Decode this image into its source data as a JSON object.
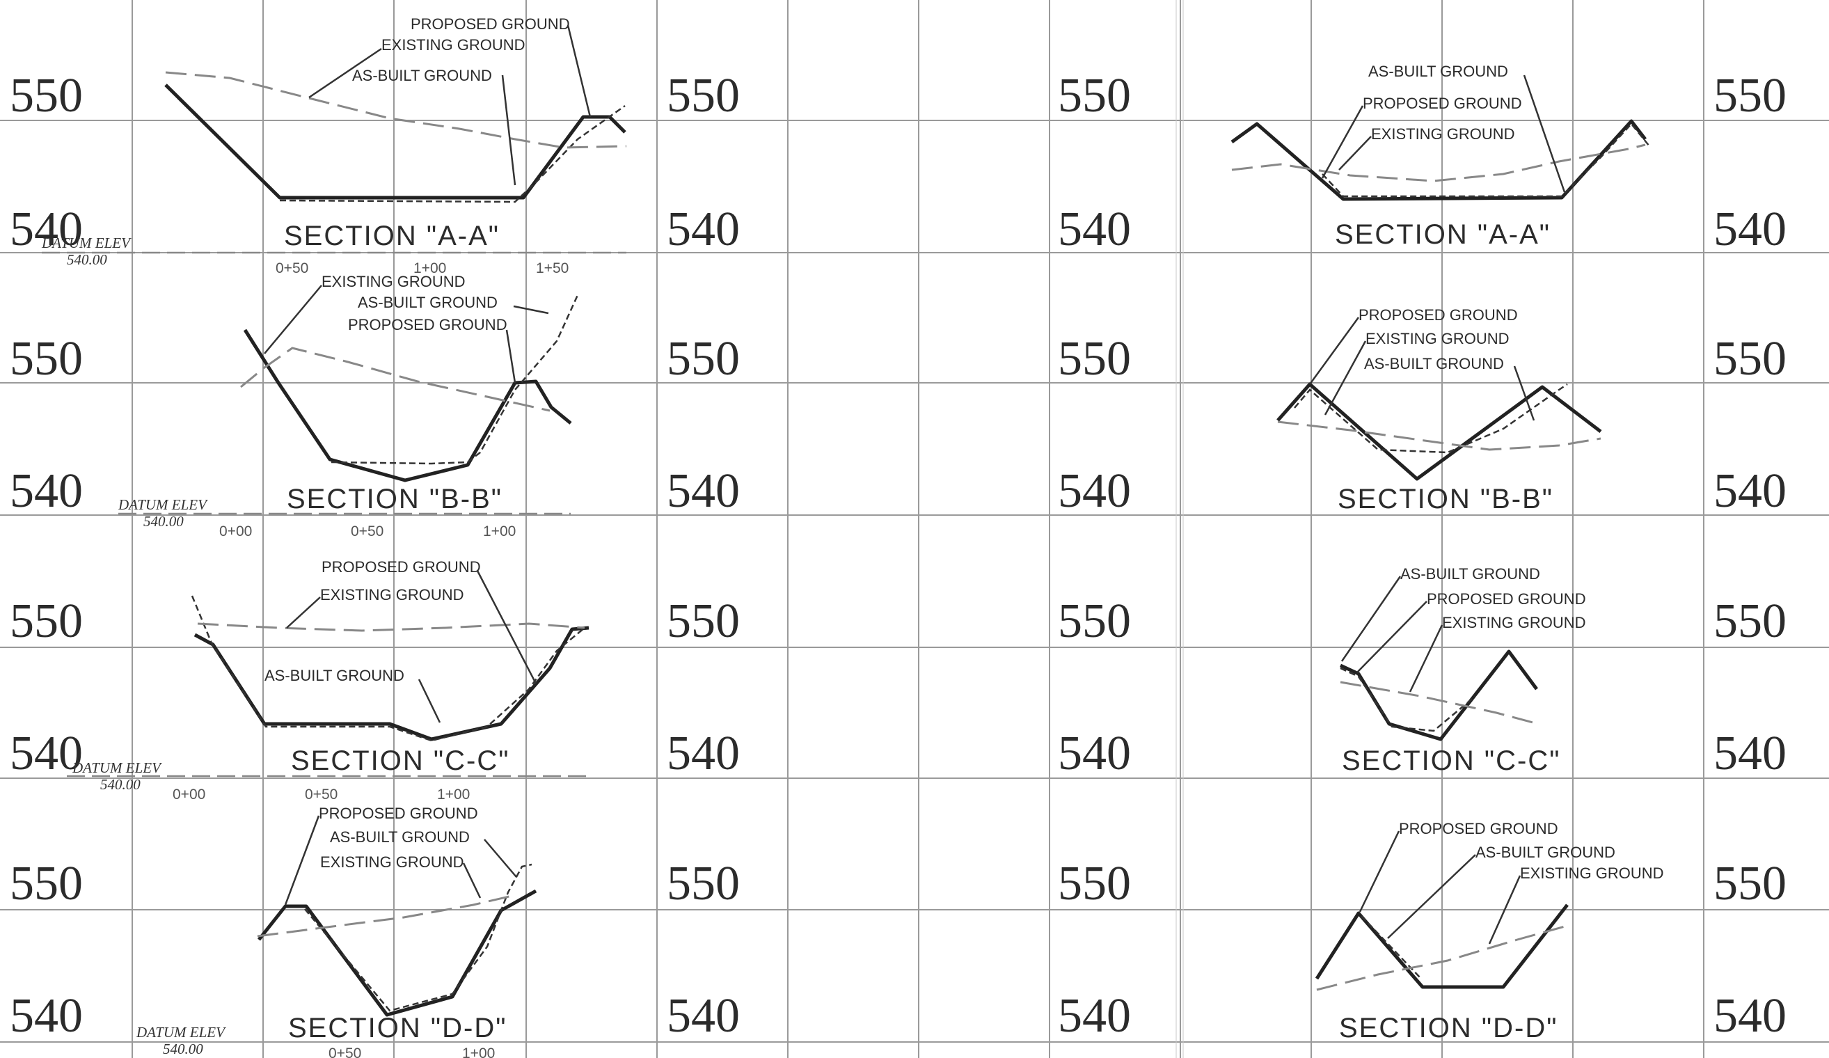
{
  "elevation_labels": {
    "high": "550",
    "low": "540"
  },
  "legend_labels": {
    "proposed": "PROPOSED GROUND",
    "existing": "EXISTING GROUND",
    "as_built": "AS-BUILT GROUND"
  },
  "datum": {
    "label": "DATUM ELEV",
    "value": "540.00"
  },
  "stations": [
    "0+00",
    "0+50",
    "1+00",
    "1+50"
  ],
  "sections": [
    {
      "id": "A",
      "title": "SECTION \"A-A\""
    },
    {
      "id": "B",
      "title": "SECTION \"B-B\""
    },
    {
      "id": "C",
      "title": "SECTION \"C-C\""
    },
    {
      "id": "D",
      "title": "SECTION \"D-D\""
    }
  ],
  "colors": {
    "line": "#222222",
    "grid": "#9a9a9a",
    "existing": "#888888",
    "background": "#ffffff"
  }
}
